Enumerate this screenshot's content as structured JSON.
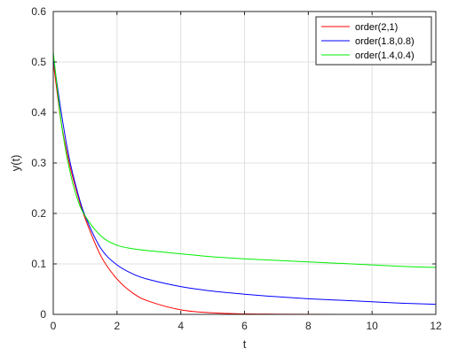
{
  "chart_data": {
    "type": "line",
    "title": "",
    "xlabel": "t",
    "ylabel": "y(t)",
    "xlim": [
      0,
      12
    ],
    "ylim": [
      0,
      0.6
    ],
    "x_ticks": [
      0,
      2,
      4,
      6,
      8,
      10,
      12
    ],
    "y_ticks": [
      0,
      0.1,
      0.2,
      0.3,
      0.4,
      0.5,
      0.6
    ],
    "x_tick_labels": [
      "0",
      "2",
      "4",
      "6",
      "8",
      "10",
      "12"
    ],
    "y_tick_labels": [
      "0",
      "0.1",
      "0.2",
      "0.3",
      "0.4",
      "0.5",
      "0.6"
    ],
    "grid": true,
    "legend_position": "top-right",
    "x": [
      0,
      0.25,
      0.5,
      0.75,
      1,
      1.5,
      2,
      2.5,
      3,
      4,
      5,
      6,
      7,
      8,
      9,
      10,
      11,
      12
    ],
    "series": [
      {
        "name": "order(2,1)",
        "color": "#ff0000",
        "values": [
          0.5,
          0.38,
          0.3,
          0.24,
          0.19,
          0.115,
          0.07,
          0.042,
          0.026,
          0.009,
          0.003,
          0.001,
          0.0005,
          0.0002,
          0.0001,
          0,
          0,
          0
        ]
      },
      {
        "name": "order(1.8,0.8)",
        "color": "#0000ff",
        "values": [
          0.51,
          0.4,
          0.31,
          0.245,
          0.195,
          0.13,
          0.098,
          0.08,
          0.069,
          0.055,
          0.046,
          0.04,
          0.035,
          0.031,
          0.028,
          0.025,
          0.022,
          0.02
        ]
      },
      {
        "name": "order(1.4,0.4)",
        "color": "#00ee00",
        "values": [
          0.52,
          0.38,
          0.29,
          0.23,
          0.195,
          0.155,
          0.137,
          0.13,
          0.126,
          0.12,
          0.114,
          0.11,
          0.107,
          0.104,
          0.101,
          0.098,
          0.095,
          0.093
        ]
      }
    ]
  }
}
